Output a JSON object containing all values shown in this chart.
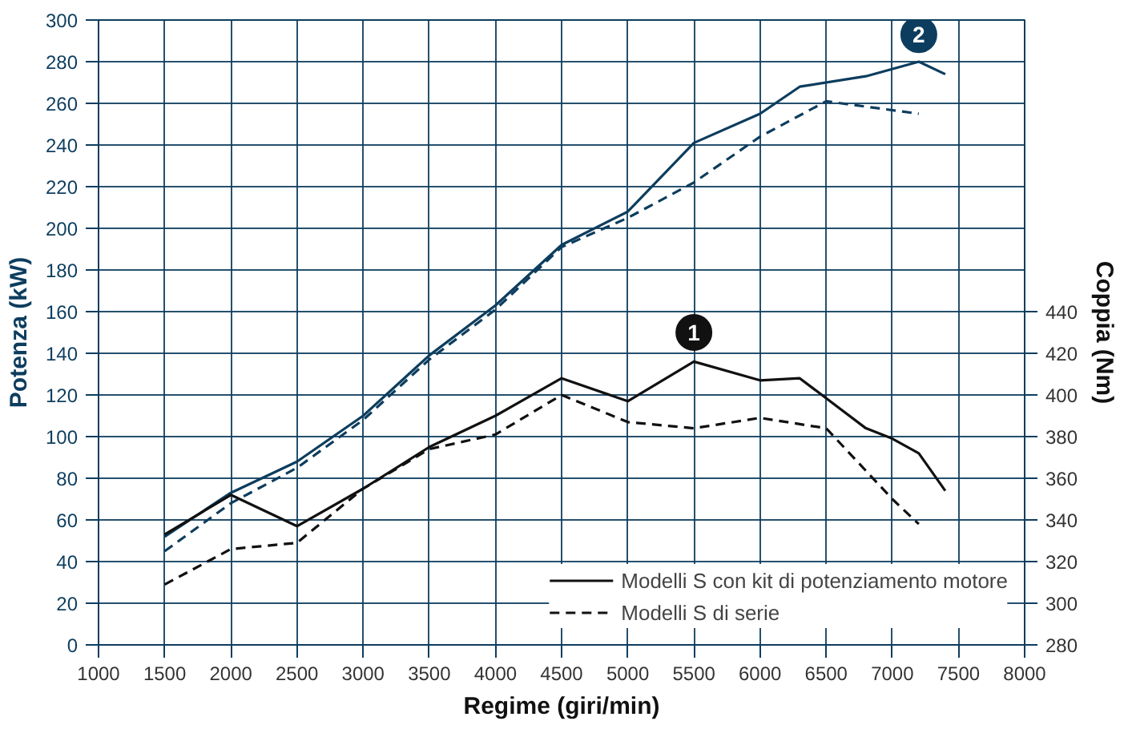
{
  "chart_data": {
    "type": "line",
    "xlabel": "Regime (giri/min)",
    "ylabel": "Potenza (kW)",
    "y2label": "Coppia (Nm)",
    "xlim": [
      1000,
      8000
    ],
    "xticks": [
      1000,
      1500,
      2000,
      2500,
      3000,
      3500,
      4000,
      4500,
      5000,
      5500,
      6000,
      6500,
      7000,
      7500,
      8000
    ],
    "ylim": [
      0,
      300
    ],
    "yticks": [
      0,
      20,
      40,
      60,
      80,
      100,
      120,
      140,
      160,
      180,
      200,
      220,
      240,
      260,
      280,
      300
    ],
    "y2lim": [
      280,
      580
    ],
    "y2ticks": [
      280,
      300,
      320,
      340,
      360,
      380,
      400,
      420,
      440
    ],
    "grid": true,
    "legend": "bottom right",
    "marker": "none",
    "series": [
      {
        "color": "#0d3d5e",
        "line_style": "solid",
        "x": [
          1500,
          2000,
          2500,
          3000,
          3500,
          4000,
          4500,
          5000,
          5500,
          6000,
          6300,
          6800,
          7200,
          7400
        ],
        "values": [
          52,
          73,
          88,
          110,
          139,
          163,
          192,
          208,
          241,
          255,
          268,
          273,
          280,
          274
        ]
      },
      {
        "color": "#0d3d5e",
        "line_style": "dashed",
        "x": [
          1500,
          2000,
          2500,
          3000,
          3500,
          4000,
          4500,
          5000,
          5500,
          6000,
          6500,
          7200
        ],
        "values": [
          45,
          68,
          85,
          108,
          137,
          161,
          191,
          205,
          222,
          244,
          261,
          255
        ]
      },
      {
        "name": "Modelli S con kit di potenziamento motore",
        "color": "#111111",
        "line_style": "solid",
        "axis": "y2",
        "x": [
          1500,
          2000,
          2500,
          3000,
          3500,
          4000,
          4500,
          5000,
          5500,
          6000,
          6300,
          6800,
          7000,
          7200,
          7400
        ],
        "values": [
          333,
          352,
          337,
          355,
          375,
          390,
          408,
          397,
          416,
          407,
          408,
          384,
          379,
          372,
          354
        ]
      },
      {
        "name": "Modelli S di serie",
        "color": "#111111",
        "line_style": "dashed",
        "axis": "y2",
        "x": [
          1500,
          2000,
          2500,
          3000,
          3500,
          4000,
          4500,
          5000,
          5500,
          6000,
          6500,
          7000,
          7200
        ],
        "values": [
          309,
          326,
          329,
          355,
          374,
          381,
          400,
          387,
          384,
          389,
          384,
          350,
          338
        ]
      }
    ],
    "annotations": [
      {
        "text": "1",
        "x": 5500,
        "y": 150
      },
      {
        "text": "2",
        "x": 7200,
        "y": 293
      }
    ]
  }
}
